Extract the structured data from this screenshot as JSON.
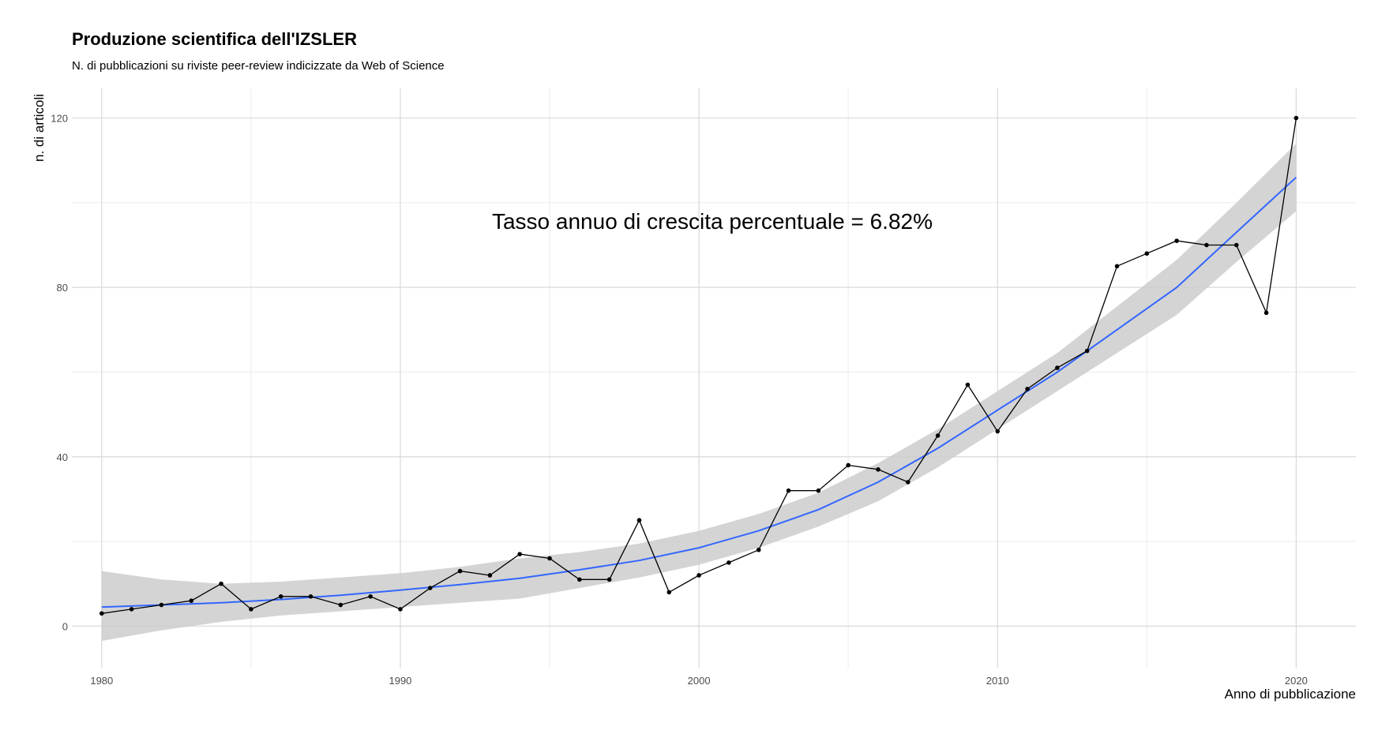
{
  "chart_data": {
    "type": "line",
    "title": "Produzione scientifica dell'IZSLER",
    "subtitle": "N. di pubblicazioni su riviste peer-review indicizzate da Web of Science",
    "xlabel": "Anno di pubblicazione",
    "ylabel": "n. di articoli",
    "annotation": "Tasso annuo di crescita  percentuale = 6.82%",
    "xlim": [
      1979,
      2022
    ],
    "ylim": [
      -10,
      127
    ],
    "grid": true,
    "x_ticks": [
      1980,
      1990,
      2000,
      2010,
      2020
    ],
    "y_ticks": [
      0,
      40,
      80,
      120
    ],
    "series": [
      {
        "type": "line+points",
        "color": "#000000",
        "x": [
          1980,
          1981,
          1982,
          1983,
          1984,
          1985,
          1986,
          1987,
          1988,
          1989,
          1990,
          1991,
          1992,
          1993,
          1994,
          1995,
          1996,
          1997,
          1998,
          1999,
          2000,
          2001,
          2002,
          2003,
          2004,
          2005,
          2006,
          2007,
          2008,
          2009,
          2010,
          2011,
          2012,
          2013,
          2014,
          2015,
          2016,
          2017,
          2018,
          2019,
          2020
        ],
        "y": [
          3,
          4,
          5,
          6,
          10,
          4,
          7,
          7,
          5,
          7,
          4,
          9,
          13,
          12,
          17,
          16,
          11,
          11,
          25,
          8,
          12,
          15,
          18,
          32,
          32,
          38,
          37,
          34,
          45,
          57,
          46,
          56,
          61,
          65,
          85,
          88,
          91,
          90,
          90,
          74,
          120
        ]
      },
      {
        "type": "smooth",
        "color": "#3366FF",
        "band_color": "#cccccc",
        "x": [
          1980,
          1982,
          1984,
          1986,
          1988,
          1990,
          1992,
          1994,
          1996,
          1998,
          2000,
          2002,
          2004,
          2006,
          2008,
          2010,
          2012,
          2014,
          2016,
          2018,
          2020
        ],
        "y": [
          4.5,
          5,
          5.5,
          6.3,
          7.3,
          8.5,
          9.8,
          11.3,
          13.3,
          15.5,
          18.5,
          22.5,
          27.5,
          34,
          42,
          51,
          60,
          70,
          80,
          93,
          106
        ],
        "lower": [
          -3.5,
          -1,
          1,
          2.5,
          3.5,
          4.5,
          5.5,
          6.5,
          9,
          11.5,
          14.5,
          18.5,
          23.5,
          29.5,
          37.5,
          46.5,
          55.5,
          64.5,
          73.5,
          86,
          98
        ],
        "upper": [
          13,
          11,
          10,
          10.5,
          11.5,
          12.5,
          14,
          16,
          17.5,
          19.5,
          22.5,
          26.5,
          31.5,
          38.5,
          46.5,
          55.5,
          64.5,
          75.5,
          86.5,
          100,
          114
        ]
      }
    ]
  }
}
